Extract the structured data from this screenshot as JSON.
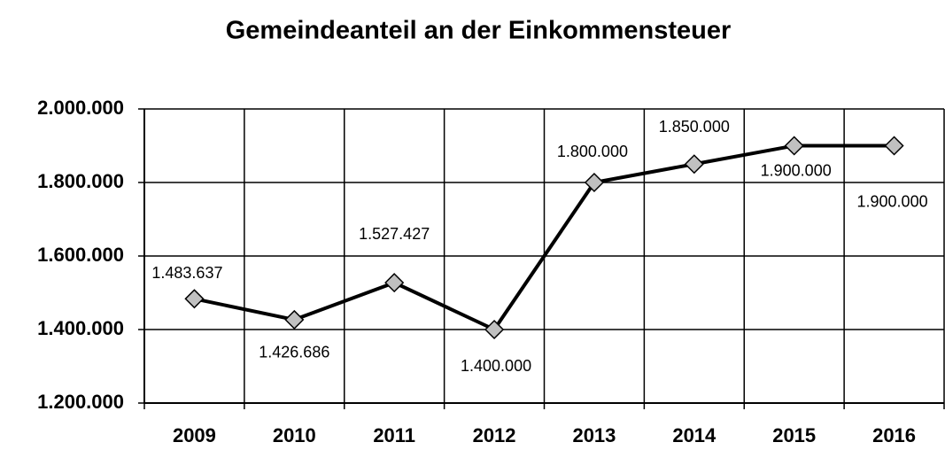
{
  "chart_data": {
    "type": "line",
    "title": "Gemeindeanteil an der Einkommensteuer",
    "categories": [
      "2009",
      "2010",
      "2011",
      "2012",
      "2013",
      "2014",
      "2015",
      "2016"
    ],
    "series": [
      {
        "name": null,
        "color": "#000000",
        "marker_color": "#c0c0c0",
        "values": [
          1483637,
          1426686,
          1527427,
          1400000,
          1800000,
          1850000,
          1900000,
          1900000
        ],
        "value_labels": [
          "1.483.637",
          "1.426.686",
          "1.527.427",
          "1.400.000",
          "1.800.000",
          "1.850.000",
          "1.900.000",
          "1.900.000"
        ]
      }
    ],
    "ylim": [
      1200000,
      2000000
    ],
    "yticks": [
      {
        "value": 1200000,
        "label": "1.200.000"
      },
      {
        "value": 1400000,
        "label": "1.400.000"
      },
      {
        "value": 1600000,
        "label": "1.600.000"
      },
      {
        "value": 1800000,
        "label": "1.800.000"
      },
      {
        "value": 2000000,
        "label": "2.000.000"
      }
    ],
    "grid": true
  }
}
